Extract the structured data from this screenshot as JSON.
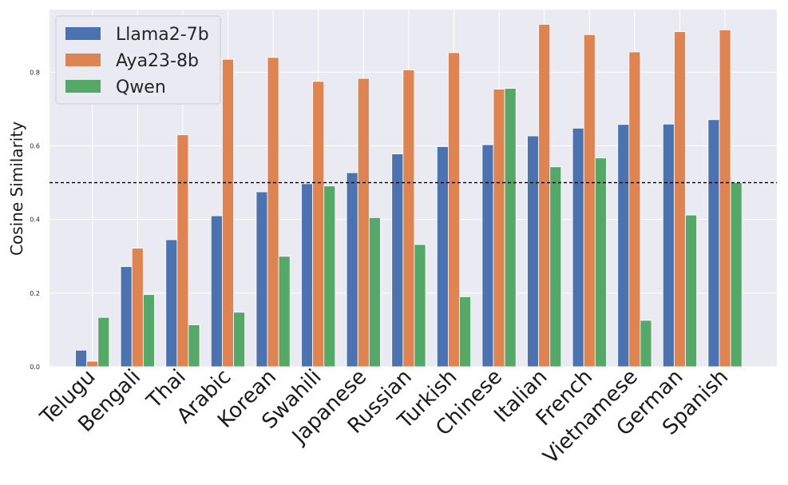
{
  "chart_data": {
    "type": "bar",
    "title": "",
    "xlabel": "",
    "ylabel": "Cosine Similarity",
    "ylim": [
      0,
      0.97
    ],
    "yticks": [
      "0.0",
      "0.2",
      "0.4",
      "0.6",
      "0.8"
    ],
    "ytick_values": [
      0.0,
      0.2,
      0.4,
      0.6,
      0.8
    ],
    "grid": true,
    "legend_position": "top-left",
    "reference_line": {
      "y": 0.5,
      "style": "dashed",
      "color": "#000000"
    },
    "categories": [
      "Telugu",
      "Bengali",
      "Thai",
      "Arabic",
      "Korean",
      "Swahili",
      "Japanese",
      "Russian",
      "Turkish",
      "Chinese",
      "Italian",
      "French",
      "Vietnamese",
      "German",
      "Spanish"
    ],
    "series": [
      {
        "name": "Llama2-7b",
        "color": "#4c72b0",
        "values": [
          0.045,
          0.272,
          0.345,
          0.41,
          0.475,
          0.497,
          0.527,
          0.578,
          0.598,
          0.603,
          0.627,
          0.648,
          0.658,
          0.659,
          0.671
        ]
      },
      {
        "name": "Aya23-8b",
        "color": "#dd8452",
        "values": [
          0.015,
          0.322,
          0.63,
          0.835,
          0.84,
          0.775,
          0.783,
          0.806,
          0.853,
          0.754,
          0.93,
          0.902,
          0.855,
          0.91,
          0.915
        ]
      },
      {
        "name": "Qwen",
        "color": "#55a868",
        "values": [
          0.134,
          0.196,
          0.114,
          0.148,
          0.3,
          0.491,
          0.405,
          0.332,
          0.19,
          0.756,
          0.543,
          0.567,
          0.126,
          0.412,
          0.5
        ]
      }
    ]
  }
}
